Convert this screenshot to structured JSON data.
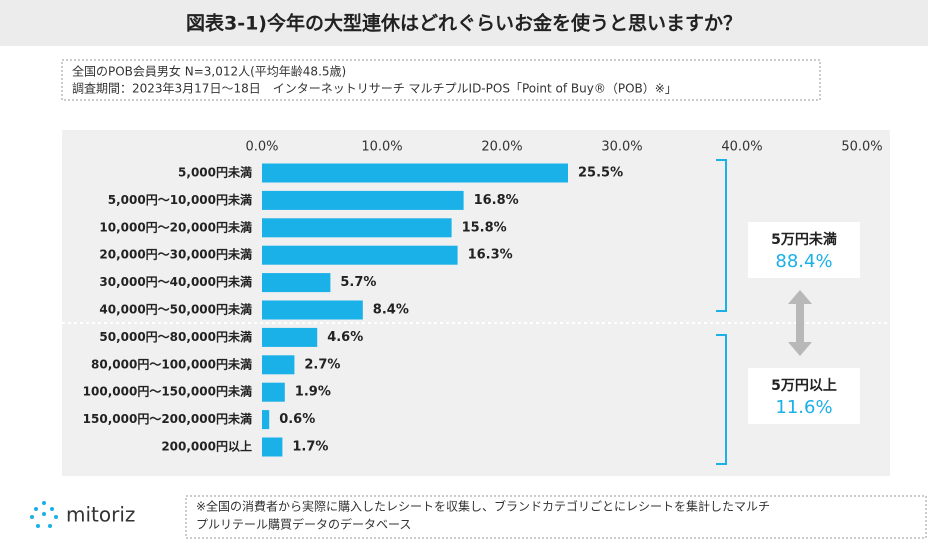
{
  "chart_data": {
    "type": "bar",
    "orientation": "horizontal",
    "title": "図表3-1)今年の大型連休はどれぐらいお金を使うと思いますか？",
    "subtitle_lines": [
      "全国のPOB会員男女 N=3,012人(平均年齢48.5歳)",
      "調査期間：2023年3月17日～18日　インターネットリサーチ マルチプルID-POS「Point of Buy®（POB）※」"
    ],
    "categories": [
      "5,000円未満",
      "5,000円～10,000円未満",
      "10,000円～20,000円未満",
      "20,000円～30,000円未満",
      "30,000円～40,000円未満",
      "40,000円～50,000円未満",
      "50,000円～80,000円未満",
      "80,000円～100,000円未満",
      "100,000円～150,000円未満",
      "150,000円～200,000円未満",
      "200,000円以上"
    ],
    "values": [
      25.5,
      16.8,
      15.8,
      16.3,
      5.7,
      8.4,
      4.6,
      2.7,
      1.9,
      0.6,
      1.7
    ],
    "value_labels": [
      "25.5%",
      "16.8%",
      "15.8%",
      "16.3%",
      "5.7%",
      "8.4%",
      "4.6%",
      "2.7%",
      "1.9%",
      "0.6%",
      "1.7%"
    ],
    "color": "#1ab0e8",
    "xlim": [
      0,
      50
    ],
    "xticks": [
      {
        "value": 0,
        "label": "0.0%"
      },
      {
        "value": 10,
        "label": "10.0%"
      },
      {
        "value": 20,
        "label": "20.0%"
      },
      {
        "value": 30,
        "label": "30.0%"
      },
      {
        "value": 40,
        "label": "40.0%"
      },
      {
        "value": 50,
        "label": "50.0%"
      }
    ],
    "annotations": [
      {
        "title": "5万円未満",
        "value": "88.4%"
      },
      {
        "title": "5万円以上",
        "value": "11.6%"
      }
    ],
    "logo": "mitoriz",
    "note_lines": [
      "※全国の消費者から実際に購入したレシートを収集し、ブランドカテゴリごとにレシートを集計したマルチ",
      "プルリテール購買データのデータベース"
    ]
  }
}
